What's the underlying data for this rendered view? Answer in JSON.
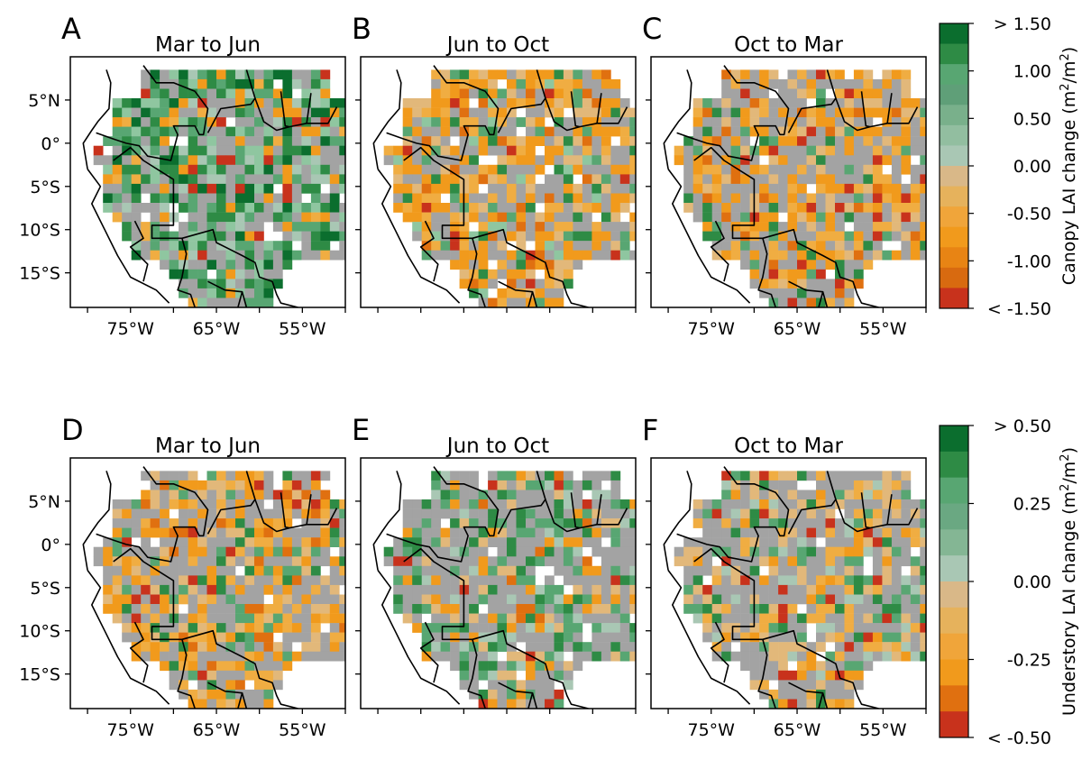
{
  "panels": [
    {
      "letter": "A",
      "title": "Mar to Jun",
      "row": 0,
      "col": 0,
      "scheme": "green"
    },
    {
      "letter": "B",
      "title": "Jun to Oct",
      "row": 0,
      "col": 1,
      "scheme": "orange"
    },
    {
      "letter": "C",
      "title": "Oct to Mar",
      "row": 0,
      "col": 2,
      "scheme": "mixed_orange"
    },
    {
      "letter": "D",
      "title": "Mar to Jun",
      "row": 1,
      "col": 0,
      "scheme": "mixed_orange"
    },
    {
      "letter": "E",
      "title": "Jun to Oct",
      "row": 1,
      "col": 1,
      "scheme": "grey_green"
    },
    {
      "letter": "F",
      "title": "Oct to Mar",
      "row": 1,
      "col": 2,
      "scheme": "grey_mixed"
    }
  ],
  "lat_ticks": [
    "5°N",
    "0°",
    "5°S",
    "10°S",
    "15°S"
  ],
  "lon_ticks": [
    "75°W",
    "65°W",
    "55°W"
  ],
  "colorbars": [
    {
      "label": "Canopy LAI change",
      "unit_base": "(m",
      "unit_sup1": "2",
      "unit_mid": "/m",
      "unit_sup2": "2",
      "unit_end": ")",
      "ticks": [
        "> 1.50",
        "1.00",
        "0.50",
        "0.00",
        "-0.50",
        "-1.00",
        "< -1.50"
      ]
    },
    {
      "label": "Understory LAI change",
      "unit_base": "(m",
      "unit_sup1": "2",
      "unit_mid": "/m",
      "unit_sup2": "2",
      "unit_end": ")",
      "ticks": [
        "> 0.50",
        "0.25",
        "0.00",
        "-0.25",
        "< -0.50"
      ]
    }
  ],
  "colors": {
    "deep_green": "#0b6e2e",
    "green": "#2e8b45",
    "mid_green": "#58a672",
    "light_green": "#8fc6a0",
    "pale_green": "#a9c7b4",
    "grey": "#a3a3a3",
    "tan": "#e2b87a",
    "light_orange": "#f0ad42",
    "orange": "#f19a1c",
    "dark_orange": "#e07010",
    "red": "#c8321c"
  }
}
